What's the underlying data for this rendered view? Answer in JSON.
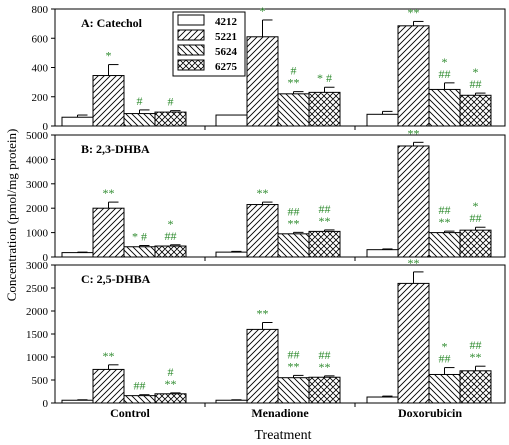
{
  "chart_data": {
    "type": "bar",
    "ylabel": "Concentration (pmol/mg protein)",
    "xlabel": "Treatment",
    "categories": [
      "Control",
      "Menadione",
      "Doxorubicin"
    ],
    "legend": {
      "placement": "top-left of first panel",
      "entries": [
        "4212",
        "5221",
        "5624",
        "6275"
      ]
    },
    "annotation_color": "#2e8b2e",
    "panels": [
      {
        "title": "A: Catechol",
        "ylim": [
          0,
          800
        ],
        "yticks": [
          0,
          200,
          400,
          600,
          800
        ],
        "series": [
          {
            "name": "4212",
            "values": [
              60,
              75,
              80
            ],
            "errors": [
              15,
              0,
              20
            ]
          },
          {
            "name": "5221",
            "values": [
              345,
              610,
              685
            ],
            "errors": [
              75,
              115,
              30
            ]
          },
          {
            "name": "5624",
            "values": [
              85,
              220,
              250
            ],
            "errors": [
              25,
              15,
              45
            ]
          },
          {
            "name": "6275",
            "values": [
              95,
              230,
              210
            ],
            "errors": [
              10,
              35,
              15
            ]
          }
        ],
        "annotations": [
          [
            "",
            "*",
            "#",
            "#"
          ],
          [
            "",
            "*",
            "#\n**",
            "* #"
          ],
          [
            "",
            "**",
            "*\n##",
            "*\n##"
          ]
        ]
      },
      {
        "title": "B: 2,3-DHBA",
        "ylim": [
          0,
          5000
        ],
        "yticks": [
          0,
          1000,
          2000,
          3000,
          4000,
          5000
        ],
        "series": [
          {
            "name": "4212",
            "values": [
              180,
              200,
              300
            ],
            "errors": [
              20,
              30,
              30
            ]
          },
          {
            "name": "5221",
            "values": [
              2000,
              2150,
              4550
            ],
            "errors": [
              250,
              100,
              150
            ]
          },
          {
            "name": "5624",
            "values": [
              420,
              950,
              1000
            ],
            "errors": [
              50,
              60,
              60
            ]
          },
          {
            "name": "6275",
            "values": [
              450,
              1050,
              1100
            ],
            "errors": [
              50,
              60,
              120
            ]
          }
        ],
        "annotations": [
          [
            "",
            "**",
            "* #",
            "*\n##"
          ],
          [
            "",
            "**",
            "##\n**",
            "##\n**"
          ],
          [
            "",
            "**",
            "##\n**",
            "*\n##"
          ]
        ]
      },
      {
        "title": "C: 2,5-DHBA",
        "ylim": [
          0,
          3000
        ],
        "yticks": [
          0,
          500,
          1000,
          1500,
          2000,
          2500,
          3000
        ],
        "series": [
          {
            "name": "4212",
            "values": [
              60,
              60,
              130
            ],
            "errors": [
              10,
              10,
              20
            ]
          },
          {
            "name": "5221",
            "values": [
              730,
              1600,
              2600
            ],
            "errors": [
              100,
              150,
              250
            ]
          },
          {
            "name": "5624",
            "values": [
              160,
              550,
              620
            ],
            "errors": [
              20,
              50,
              150
            ]
          },
          {
            "name": "6275",
            "values": [
              200,
              560,
              700
            ],
            "errors": [
              20,
              30,
              100
            ]
          }
        ],
        "annotations": [
          [
            "",
            "**",
            "##",
            "#\n**"
          ],
          [
            "",
            "**",
            "##\n**",
            "##\n**"
          ],
          [
            "",
            "**",
            "*\n##",
            "##\n**"
          ]
        ]
      }
    ]
  }
}
